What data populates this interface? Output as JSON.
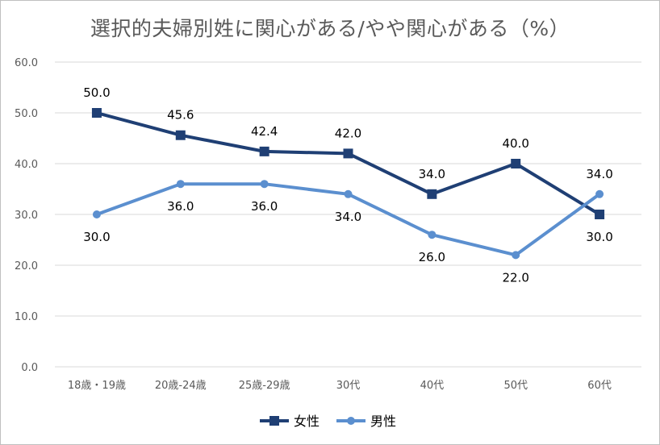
{
  "chart_data": {
    "type": "line",
    "title": "選択的夫婦別姓に関心がある/やや関心がある（%）",
    "categories": [
      "18歳・19歳",
      "20歳-24歳",
      "25歳-29歳",
      "30代",
      "40代",
      "50代",
      "60代"
    ],
    "series": [
      {
        "name": "女性",
        "values": [
          50.0,
          45.6,
          42.4,
          42.0,
          34.0,
          40.0,
          30.0
        ],
        "color": "#1f3f74",
        "marker": "square"
      },
      {
        "name": "男性",
        "values": [
          30.0,
          36.0,
          36.0,
          34.0,
          26.0,
          22.0,
          34.0
        ],
        "color": "#5b8fcf",
        "marker": "circle"
      }
    ],
    "y_ticks": [
      "0.0",
      "10.0",
      "20.0",
      "30.0",
      "40.0",
      "50.0",
      "60.0"
    ],
    "ylim": [
      0,
      60
    ],
    "grid": true,
    "legend": "bottom"
  }
}
